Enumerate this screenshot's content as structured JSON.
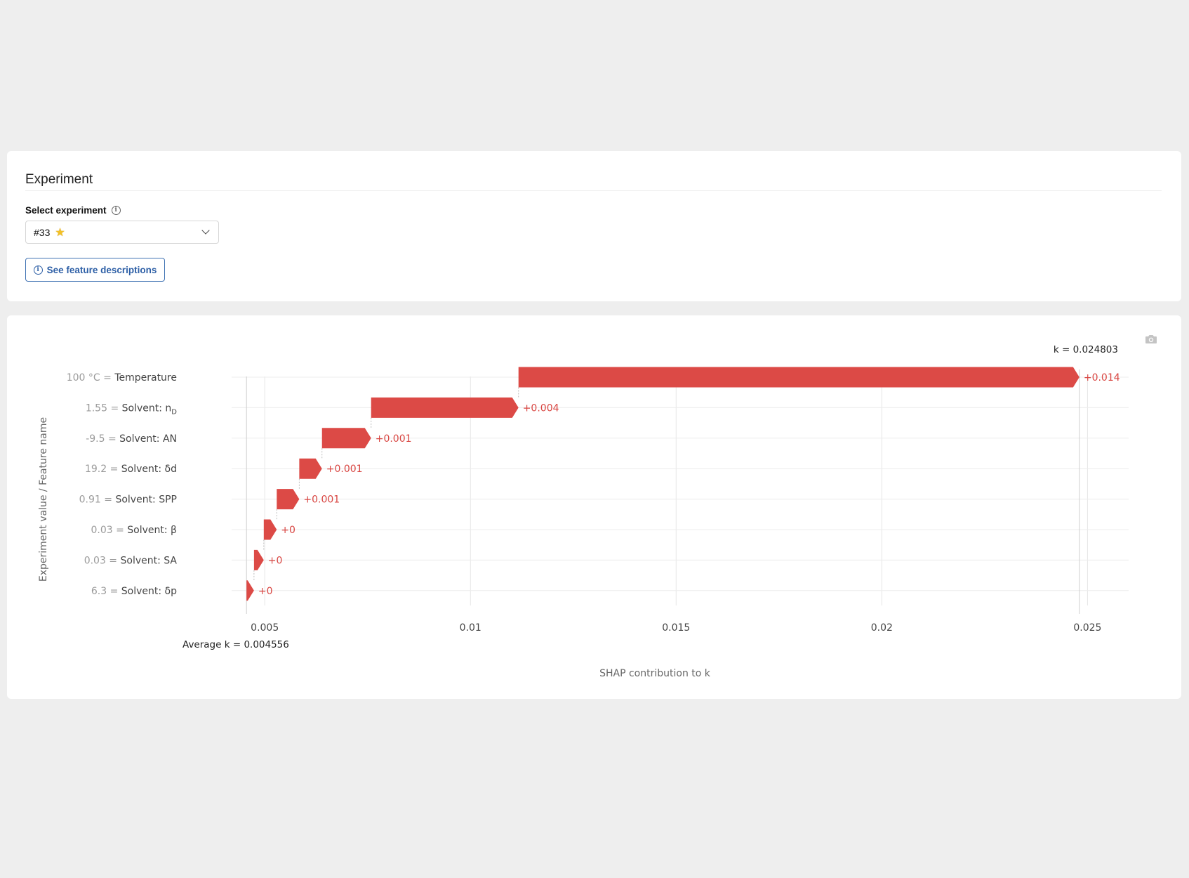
{
  "experiment_panel": {
    "title": "Experiment",
    "select_label": "Select experiment",
    "selected_value": "#33",
    "selected_icon": "star-icon",
    "feature_button_label": "See feature descriptions"
  },
  "chart_toolbar": {
    "icon": "camera-icon"
  },
  "chart_data": {
    "type": "waterfall",
    "orientation": "horizontal",
    "xlabel": "SHAP contribution to k",
    "ylabel": "Experiment value / Feature name",
    "xlim": [
      0.003,
      0.026
    ],
    "xticks": [
      {
        "value": 0.005,
        "label": "0.005"
      },
      {
        "value": 0.01,
        "label": "0.01"
      },
      {
        "value": 0.015,
        "label": "0.015"
      },
      {
        "value": 0.02,
        "label": "0.02"
      },
      {
        "value": 0.025,
        "label": "0.025"
      }
    ],
    "base_value": 0.004556,
    "base_label": "Average k = 0.004556",
    "final_value": 0.024803,
    "final_label": "k = 0.024803",
    "bar_color": "#dc4a46",
    "label_color": "#d94642",
    "bars": [
      {
        "value_text": "100 °C",
        "feature": "Temperature",
        "start": 0.011168,
        "end": 0.024803,
        "label": "+0.014"
      },
      {
        "value_text": "1.55",
        "feature": "Solvent: n",
        "feature_sub": "D",
        "start": 0.007585,
        "end": 0.011168,
        "label": "+0.004"
      },
      {
        "value_text": "-9.5",
        "feature": "Solvent: AN",
        "start": 0.006391,
        "end": 0.007585,
        "label": "+0.001"
      },
      {
        "value_text": "19.2",
        "feature": "Solvent: δd",
        "start": 0.005839,
        "end": 0.006391,
        "label": "+0.001"
      },
      {
        "value_text": "0.91",
        "feature": "Solvent: SPP",
        "start": 0.005291,
        "end": 0.005839,
        "label": "+0.001"
      },
      {
        "value_text": "0.03",
        "feature": "Solvent: β",
        "start": 0.004976,
        "end": 0.005291,
        "label": "+0"
      },
      {
        "value_text": "0.03",
        "feature": "Solvent: SA",
        "start": 0.004738,
        "end": 0.004976,
        "label": "+0"
      },
      {
        "value_text": "6.3",
        "feature": "Solvent: δp",
        "start": 0.004556,
        "end": 0.004738,
        "label": "+0"
      }
    ]
  }
}
